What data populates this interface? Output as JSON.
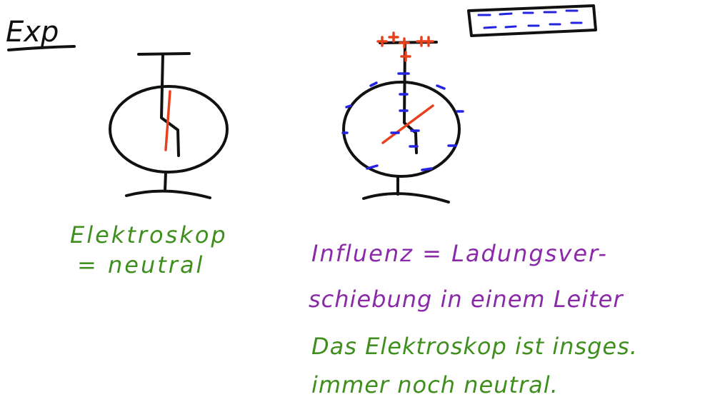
{
  "title": "Exp",
  "label_left": {
    "line1": "Elektroskop",
    "line2": "= neutral"
  },
  "definition": {
    "line1": "Influenz = Ladungsver-",
    "line2": "schiebung in einem Leiter"
  },
  "conclusion": {
    "line1": "Das Elektroskop ist insges.",
    "line2": "immer noch neutral."
  },
  "colors": {
    "ink": "#111111",
    "green": "#3f8f1f",
    "purple": "#8a2aa8",
    "positive": "#e8401c",
    "negative": "#2323e0"
  }
}
